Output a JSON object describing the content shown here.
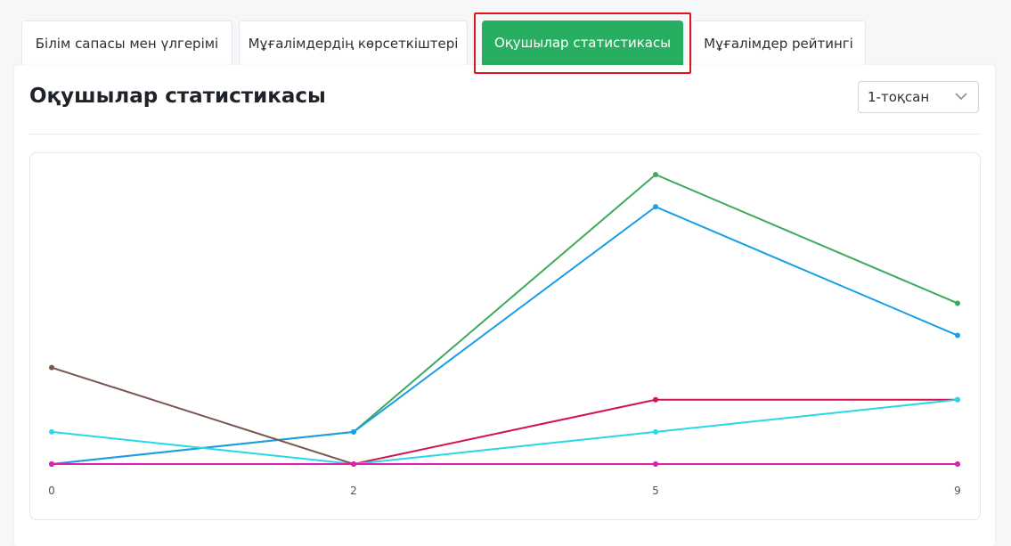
{
  "tabs": [
    {
      "label": "Білім сапасы мен үлгерімі",
      "active": false
    },
    {
      "label": "Мұғалімдердің көрсеткіштері",
      "active": false
    },
    {
      "label": "Оқушылар статистикасы",
      "active": true
    },
    {
      "label": "Мұғалімдер рейтингі",
      "active": false
    }
  ],
  "card": {
    "title": "Оқушылар статистикасы",
    "select": {
      "value": "1-тоқсан"
    }
  },
  "colors": {
    "accent": "#27ae60",
    "highlight": "#e0141e"
  },
  "chart_data": {
    "type": "line",
    "x": [
      0,
      2,
      5,
      9
    ],
    "xlabel": "",
    "ylabel": "",
    "ylim": [
      0,
      9
    ],
    "grid": false,
    "legend": "none",
    "series": [
      {
        "color": "#3daa5c",
        "values": [
          0,
          1,
          9,
          5
        ]
      },
      {
        "color": "#1a9ee6",
        "values": [
          0,
          1,
          8,
          4
        ]
      },
      {
        "color": "#d0144c",
        "values": [
          0,
          0,
          2,
          2
        ]
      },
      {
        "color": "#26d9e6",
        "values": [
          1,
          0,
          1,
          2
        ]
      },
      {
        "color": "#7b5550",
        "values": [
          3,
          0,
          0,
          0
        ]
      },
      {
        "color": "#e020b0",
        "values": [
          0,
          0,
          0,
          0
        ]
      }
    ]
  }
}
